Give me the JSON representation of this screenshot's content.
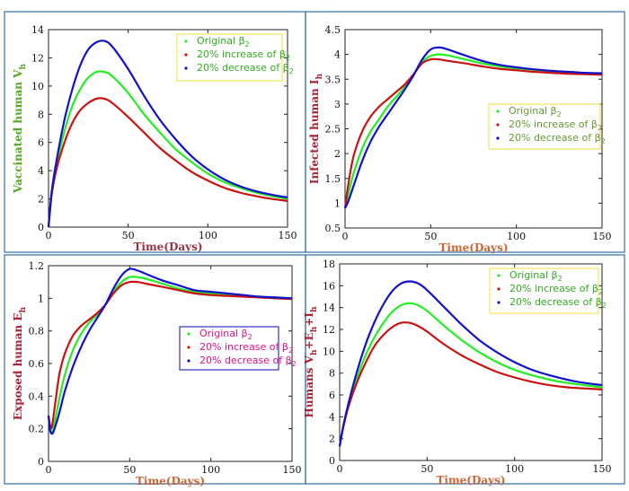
{
  "figure": {
    "colors": {
      "original": "#22ee22",
      "increase": "#cc1111",
      "decrease": "#1111cc",
      "panel_border": "#2f6ea8",
      "legend_border_yellow": "#f2e25a",
      "legend_border_blue": "#3333cc"
    }
  },
  "chart_data": [
    {
      "type": "line",
      "id": "vaccinated",
      "ylabel": "Vaccinated human  V",
      "ylabel_sub": "h",
      "ylabel_color": "#55aa22",
      "xlabel": "Time(Days)",
      "xlabel_color": "#993344",
      "xlim": [
        0,
        150
      ],
      "ylim": [
        0,
        14
      ],
      "xticks": [
        0,
        50,
        100,
        150
      ],
      "yticks": [
        0,
        2,
        4,
        6,
        8,
        10,
        12,
        14
      ],
      "ytick_labels": [
        "0",
        "2",
        "4",
        "6",
        "8",
        "10",
        "12",
        "14"
      ],
      "legend_position": "top-right",
      "legend_text_color": "#33aa22",
      "legend_border": "#f2e25a",
      "x": [
        0,
        2,
        5,
        10,
        15,
        20,
        25,
        30,
        35,
        40,
        50,
        60,
        70,
        80,
        90,
        100,
        110,
        120,
        130,
        140,
        150
      ],
      "series": [
        {
          "key": "original",
          "name": "Original β",
          "sub": "2",
          "values": [
            0,
            2.4,
            4.4,
            6.8,
            8.6,
            9.8,
            10.6,
            11.0,
            11.0,
            10.7,
            9.5,
            8.0,
            6.7,
            5.5,
            4.6,
            3.8,
            3.2,
            2.8,
            2.45,
            2.2,
            2.0
          ]
        },
        {
          "key": "increase",
          "name": "20% increase of  β",
          "sub": "2",
          "values": [
            0,
            2.3,
            4.1,
            6.0,
            7.4,
            8.3,
            8.8,
            9.1,
            9.1,
            8.8,
            7.8,
            6.7,
            5.6,
            4.7,
            3.9,
            3.3,
            2.8,
            2.45,
            2.2,
            2.0,
            1.85
          ]
        },
        {
          "key": "decrease",
          "name": "20% decrease of  β",
          "sub": "2",
          "values": [
            0,
            2.5,
            4.7,
            7.6,
            9.8,
            11.5,
            12.6,
            13.1,
            13.2,
            12.8,
            11.2,
            9.3,
            7.6,
            6.2,
            5.0,
            4.1,
            3.4,
            2.9,
            2.55,
            2.3,
            2.1
          ]
        }
      ]
    },
    {
      "type": "line",
      "id": "infected",
      "ylabel": "Infected human  I",
      "ylabel_sub": "h",
      "ylabel_color": "#aa2233",
      "xlabel": "Time(Days)",
      "xlabel_color": "#cc6633",
      "xlim": [
        0,
        150
      ],
      "ylim": [
        0.5,
        4.5
      ],
      "xticks": [
        0,
        50,
        100,
        150
      ],
      "yticks": [
        0.5,
        1,
        1.5,
        2,
        2.5,
        3,
        3.5,
        4,
        4.5
      ],
      "ytick_labels": [
        "0.5",
        "1",
        "1.5",
        "2",
        "2.5",
        "3",
        "3.5",
        "4",
        "4.5"
      ],
      "legend_position": "center-right",
      "legend_text_color": "#669933",
      "legend_border": "#f2e25a",
      "x": [
        0,
        2,
        5,
        10,
        15,
        20,
        25,
        30,
        35,
        40,
        45,
        50,
        55,
        60,
        70,
        80,
        90,
        100,
        110,
        120,
        130,
        140,
        150
      ],
      "series": [
        {
          "key": "original",
          "name": "Original β",
          "sub": "2",
          "values": [
            0.9,
            1.2,
            1.6,
            2.1,
            2.45,
            2.7,
            2.95,
            3.15,
            3.35,
            3.6,
            3.85,
            3.97,
            4.0,
            3.98,
            3.9,
            3.82,
            3.76,
            3.72,
            3.69,
            3.66,
            3.64,
            3.62,
            3.61
          ]
        },
        {
          "key": "increase",
          "name": "20% increase of  β",
          "sub": "2",
          "values": [
            0.9,
            1.4,
            1.95,
            2.45,
            2.75,
            2.95,
            3.1,
            3.25,
            3.4,
            3.6,
            3.82,
            3.9,
            3.9,
            3.87,
            3.82,
            3.76,
            3.71,
            3.68,
            3.65,
            3.63,
            3.61,
            3.6,
            3.59
          ]
        },
        {
          "key": "decrease",
          "name": "20% decrease of  β",
          "sub": "2",
          "values": [
            0.9,
            1.05,
            1.35,
            1.85,
            2.25,
            2.55,
            2.8,
            3.05,
            3.3,
            3.58,
            3.9,
            4.1,
            4.14,
            4.1,
            3.98,
            3.87,
            3.79,
            3.74,
            3.7,
            3.67,
            3.65,
            3.63,
            3.62
          ]
        }
      ]
    },
    {
      "type": "line",
      "id": "exposed",
      "ylabel": "Exposed human  E",
      "ylabel_sub": "h",
      "ylabel_color": "#aa2233",
      "xlabel": "Time(Days)",
      "xlabel_color": "#cc6633",
      "xlim": [
        0,
        150
      ],
      "ylim": [
        0,
        1.2
      ],
      "xticks": [
        0,
        50,
        100,
        150
      ],
      "yticks": [
        0,
        0.2,
        0.4,
        0.6,
        0.8,
        1,
        1.2
      ],
      "ytick_labels": [
        "0",
        "0.2",
        "0.4",
        "0.6",
        "0.8",
        "1",
        "1.2"
      ],
      "legend_position": "center-right",
      "legend_text_color": "#dd1188",
      "legend_border": "#3333cc",
      "x": [
        0,
        1,
        2,
        3,
        5,
        7,
        10,
        15,
        20,
        25,
        30,
        35,
        40,
        45,
        50,
        55,
        60,
        70,
        80,
        90,
        100,
        110,
        120,
        130,
        140,
        150
      ],
      "series": [
        {
          "key": "original",
          "name": "Original β",
          "sub": "2",
          "values": [
            0.28,
            0.2,
            0.18,
            0.2,
            0.3,
            0.4,
            0.53,
            0.68,
            0.78,
            0.85,
            0.9,
            0.96,
            1.04,
            1.1,
            1.13,
            1.13,
            1.12,
            1.09,
            1.06,
            1.04,
            1.03,
            1.02,
            1.015,
            1.01,
            1.005,
            1.0
          ]
        },
        {
          "key": "increase",
          "name": "20% increase of  β",
          "sub": "2",
          "values": [
            0.28,
            0.22,
            0.21,
            0.27,
            0.42,
            0.55,
            0.66,
            0.77,
            0.83,
            0.87,
            0.91,
            0.96,
            1.03,
            1.08,
            1.1,
            1.1,
            1.09,
            1.07,
            1.05,
            1.03,
            1.02,
            1.015,
            1.01,
            1.005,
            1.0,
            0.995
          ]
        },
        {
          "key": "decrease",
          "name": "20% decrease of  β",
          "sub": "2",
          "values": [
            0.28,
            0.19,
            0.17,
            0.18,
            0.24,
            0.31,
            0.43,
            0.58,
            0.7,
            0.8,
            0.88,
            0.96,
            1.06,
            1.14,
            1.18,
            1.17,
            1.15,
            1.11,
            1.08,
            1.05,
            1.04,
            1.03,
            1.02,
            1.01,
            1.005,
            1.0
          ]
        }
      ]
    },
    {
      "type": "line",
      "id": "humans_total",
      "ylabel": "Humans V",
      "ylabel_tail": "+E",
      "ylabel_tail2": "+I",
      "ylabel_sub": "h",
      "ylabel_color": "#aa2233",
      "xlabel": "Time(Days)",
      "xlabel_color": "#cc6633",
      "xlim": [
        0,
        150
      ],
      "ylim": [
        0,
        18
      ],
      "xticks": [
        0,
        50,
        100,
        150
      ],
      "yticks": [
        0,
        2,
        4,
        6,
        8,
        10,
        12,
        14,
        16,
        18
      ],
      "ytick_labels": [
        "0",
        "2",
        "4",
        "6",
        "8",
        "10",
        "12",
        "14",
        "16",
        "18"
      ],
      "legend_position": "top-right",
      "legend_text_color": "#33aa22",
      "legend_border": "#f2e25a",
      "x": [
        0,
        2,
        5,
        10,
        15,
        20,
        25,
        30,
        35,
        40,
        45,
        50,
        60,
        70,
        80,
        90,
        100,
        110,
        120,
        130,
        140,
        150
      ],
      "series": [
        {
          "key": "original",
          "name": "Original β",
          "sub": "2",
          "values": [
            1.3,
            3.0,
            5.0,
            7.6,
            9.7,
            11.3,
            12.6,
            13.6,
            14.2,
            14.4,
            14.2,
            13.7,
            12.3,
            11.0,
            9.9,
            9.0,
            8.3,
            7.8,
            7.4,
            7.1,
            6.9,
            6.7
          ]
        },
        {
          "key": "increase",
          "name": "20% increase of  β",
          "sub": "2",
          "values": [
            1.3,
            3.0,
            4.9,
            7.2,
            9.0,
            10.5,
            11.5,
            12.2,
            12.6,
            12.6,
            12.3,
            11.8,
            10.6,
            9.6,
            8.8,
            8.1,
            7.6,
            7.2,
            6.9,
            6.7,
            6.6,
            6.5
          ]
        },
        {
          "key": "decrease",
          "name": "20% decrease of  β",
          "sub": "2",
          "values": [
            1.3,
            3.1,
            5.2,
            8.2,
            10.7,
            12.7,
            14.3,
            15.5,
            16.2,
            16.4,
            16.2,
            15.6,
            14.0,
            12.4,
            11.0,
            9.9,
            9.0,
            8.3,
            7.8,
            7.4,
            7.1,
            6.9
          ]
        }
      ]
    }
  ]
}
